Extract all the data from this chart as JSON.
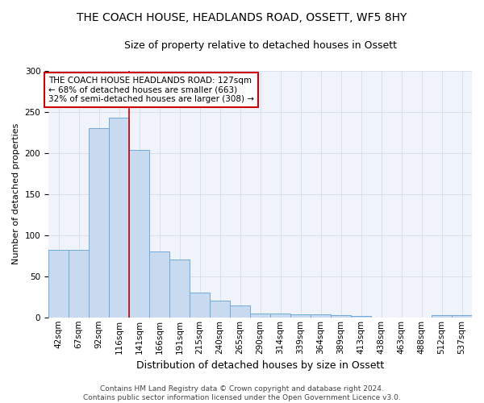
{
  "title": "THE COACH HOUSE, HEADLANDS ROAD, OSSETT, WF5 8HY",
  "subtitle": "Size of property relative to detached houses in Ossett",
  "xlabel": "Distribution of detached houses by size in Ossett",
  "ylabel": "Number of detached properties",
  "categories": [
    "42sqm",
    "67sqm",
    "92sqm",
    "116sqm",
    "141sqm",
    "166sqm",
    "191sqm",
    "215sqm",
    "240sqm",
    "265sqm",
    "290sqm",
    "314sqm",
    "339sqm",
    "364sqm",
    "389sqm",
    "413sqm",
    "438sqm",
    "463sqm",
    "488sqm",
    "512sqm",
    "537sqm"
  ],
  "values": [
    82,
    82,
    230,
    243,
    204,
    80,
    70,
    30,
    20,
    14,
    5,
    5,
    4,
    4,
    3,
    2,
    0,
    0,
    0,
    3,
    3
  ],
  "bar_color": "#c8daf0",
  "bar_edge_color": "#6eaadc",
  "red_line_index": 3.5,
  "annotation_text": "THE COACH HOUSE HEADLANDS ROAD: 127sqm\n← 68% of detached houses are smaller (663)\n32% of semi-detached houses are larger (308) →",
  "annotation_box_color": "#ffffff",
  "annotation_border_color": "#cc0000",
  "red_line_color": "#cc0000",
  "ylim": [
    0,
    300
  ],
  "yticks": [
    0,
    50,
    100,
    150,
    200,
    250,
    300
  ],
  "footnote": "Contains HM Land Registry data © Crown copyright and database right 2024.\nContains public sector information licensed under the Open Government Licence v3.0.",
  "title_fontsize": 10,
  "subtitle_fontsize": 9,
  "xlabel_fontsize": 9,
  "ylabel_fontsize": 8,
  "tick_fontsize": 7.5,
  "annotation_fontsize": 7.5,
  "footnote_fontsize": 6.5,
  "bg_color": "#f0f4fa"
}
